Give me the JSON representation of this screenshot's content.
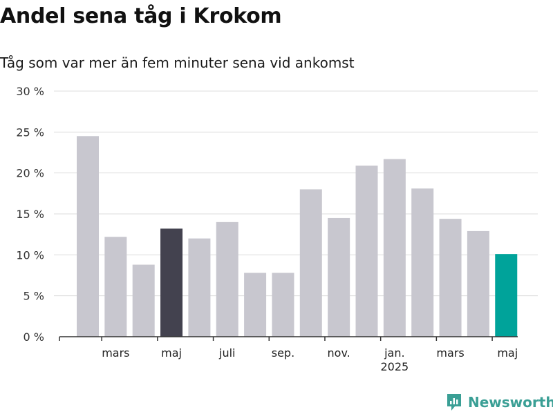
{
  "header": {
    "title": "Andel sena tåg i Krokom",
    "subtitle": "Tåg som var mer än fem minuter sena vid ankomst"
  },
  "branding": {
    "logo_text": "Newsworthy",
    "logo_color": "#3a9f95"
  },
  "colors": {
    "bar_default": "#c8c7cf",
    "bar_highlight_dark": "#43424f",
    "bar_highlight_latest": "#00a39a",
    "gridline": "#dcdcdc",
    "axis": "#333333"
  },
  "chart_data": {
    "type": "bar",
    "unit": "%",
    "title": "",
    "xlabel": "",
    "ylabel": "",
    "ylim": [
      0,
      30
    ],
    "y_ticks": [
      0,
      5,
      10,
      15,
      20,
      25,
      30
    ],
    "y_tick_labels": [
      "0 %",
      "5 %",
      "10 %",
      "15 %",
      "20 %",
      "25 %",
      "30 %"
    ],
    "grid": true,
    "categories": [
      "2024-02",
      "2024-03",
      "2024-04",
      "2024-05",
      "2024-06",
      "2024-07",
      "2024-08",
      "2024-09",
      "2024-10",
      "2024-11",
      "2024-12",
      "2025-01",
      "2025-02",
      "2025-03",
      "2025-04",
      "2025-05"
    ],
    "values": [
      24.5,
      12.2,
      8.8,
      13.2,
      12.0,
      14.0,
      7.8,
      7.8,
      18.0,
      14.5,
      20.9,
      21.7,
      18.1,
      14.4,
      12.9,
      10.1
    ],
    "highlights": {
      "2024-05": "dark",
      "2025-05": "latest"
    },
    "x_tick_labels": [
      {
        "category": "2024-03",
        "label": "mars"
      },
      {
        "category": "2024-05",
        "label": "maj"
      },
      {
        "category": "2024-07",
        "label": "juli"
      },
      {
        "category": "2024-09",
        "label": "sep."
      },
      {
        "category": "2024-11",
        "label": "nov."
      },
      {
        "category": "2025-01",
        "label": "jan.",
        "year": "2025"
      },
      {
        "category": "2025-03",
        "label": "mars"
      },
      {
        "category": "2025-05",
        "label": "maj"
      }
    ]
  }
}
